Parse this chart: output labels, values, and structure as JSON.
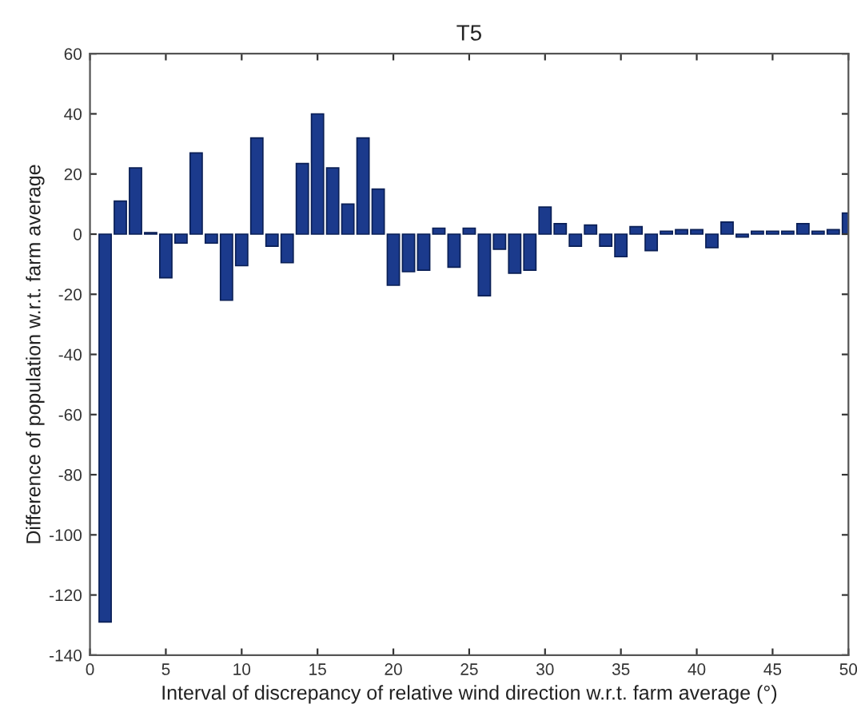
{
  "chart_data": {
    "type": "bar",
    "title": "T5",
    "xlabel": "Interval of discrepancy of relative wind direction w.r.t. farm average (°)",
    "ylabel": "Difference of population w.r.t. farm average",
    "x": [
      1,
      2,
      3,
      4,
      5,
      6,
      7,
      8,
      9,
      10,
      11,
      12,
      13,
      14,
      15,
      16,
      17,
      18,
      19,
      20,
      21,
      22,
      23,
      24,
      25,
      26,
      27,
      28,
      29,
      30,
      31,
      32,
      33,
      34,
      35,
      36,
      37,
      38,
      39,
      40,
      41,
      42,
      43,
      44,
      45,
      46,
      47,
      48,
      49,
      50
    ],
    "values": [
      -129,
      11,
      22,
      0.5,
      -14.5,
      -3,
      27,
      -3,
      -22,
      -10.5,
      32,
      -4,
      -9.5,
      23.5,
      40,
      22,
      10,
      32,
      15,
      -17,
      -12.5,
      -12,
      2,
      -11,
      2,
      -20.5,
      -5,
      -13,
      -12,
      9,
      3.5,
      -4,
      3,
      -4,
      -7.5,
      2.5,
      -5.5,
      1,
      1.5,
      1.5,
      -4.5,
      4,
      -1,
      1,
      1,
      1,
      3.5,
      1,
      1.5,
      7
    ],
    "color": "#1b3a8c",
    "xlim": [
      0,
      50
    ],
    "xticks": [
      0,
      5,
      10,
      15,
      20,
      25,
      30,
      35,
      40,
      45,
      50
    ],
    "ylim": [
      -140,
      60
    ],
    "yticks": [
      -140,
      -120,
      -100,
      -80,
      -60,
      -40,
      -20,
      0,
      20,
      40,
      60
    ],
    "grid": false
  }
}
